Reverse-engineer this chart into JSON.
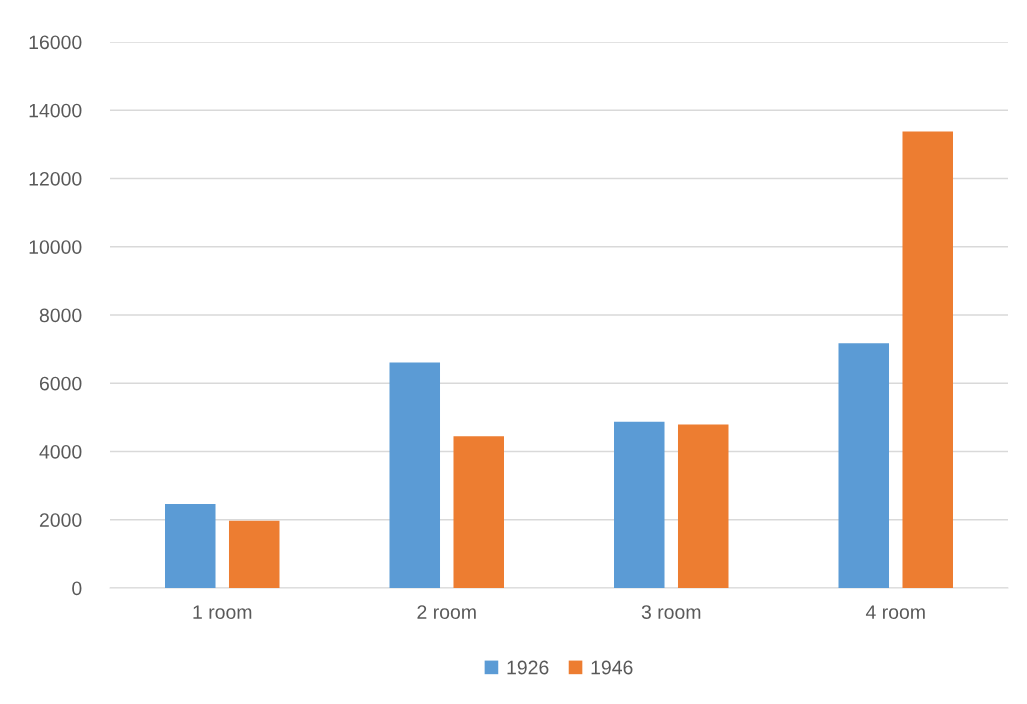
{
  "chart_data": {
    "type": "bar",
    "categories": [
      "1 room",
      "2 room",
      "3 room",
      "4 room"
    ],
    "series": [
      {
        "name": "1926",
        "color": "#5b9bd5",
        "values": [
          2460,
          6610,
          4870,
          7170
        ]
      },
      {
        "name": "1946",
        "color": "#ed7d31",
        "values": [
          1970,
          4450,
          4790,
          13380
        ]
      }
    ],
    "ylim": [
      0,
      16000
    ],
    "yticks": [
      0,
      2000,
      4000,
      6000,
      8000,
      10000,
      12000,
      14000,
      16000
    ],
    "grid": "y",
    "legend": "bottom"
  }
}
